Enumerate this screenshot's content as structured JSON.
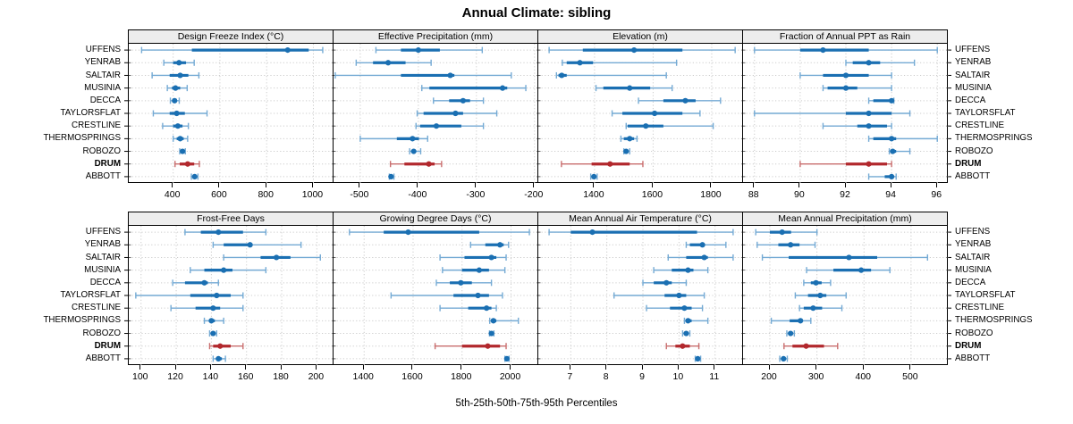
{
  "title": "Annual Climate: sibling",
  "caption": "5th-25th-50th-75th-95th Percentiles",
  "stations": [
    "UFFENS",
    "YENRAB",
    "SALTAIR",
    "MUSINIA",
    "DECCA",
    "TAYLORSFLAT",
    "CRESTLINE",
    "THERMOSPRINGS",
    "ROBOZO",
    "DRUM",
    "ABBOTT"
  ],
  "highlight_station": "DRUM",
  "colors": {
    "blue_dark": "#1a6fb2",
    "blue_light": "#74aad4",
    "red_dark": "#b2282d",
    "red_light": "#c96e6e",
    "strip_bg": "#ededed",
    "grid": "#cccccc",
    "border": "#000000"
  },
  "percentiles": [
    5,
    25,
    50,
    75,
    95
  ],
  "chart_data": [
    {
      "type": "dot-interval",
      "title": "Design Freeze Index (°C)",
      "row": 0,
      "col": 0,
      "xlim": [
        210,
        1090
      ],
      "ticks": [
        400,
        600,
        800,
        1000
      ],
      "values": [
        [
          265,
          480,
          890,
          980,
          1040
        ],
        [
          360,
          400,
          425,
          455,
          490
        ],
        [
          310,
          385,
          430,
          465,
          510
        ],
        [
          375,
          395,
          410,
          430,
          460
        ],
        [
          388,
          398,
          406,
          416,
          426
        ],
        [
          315,
          385,
          415,
          450,
          545
        ],
        [
          355,
          400,
          420,
          440,
          465
        ],
        [
          400,
          415,
          430,
          445,
          462
        ],
        [
          428,
          434,
          440,
          446,
          452
        ],
        [
          408,
          428,
          462,
          490,
          512
        ],
        [
          478,
          486,
          492,
          498,
          506
        ]
      ]
    },
    {
      "type": "dot-interval",
      "title": "Effective Precipitation (mm)",
      "row": 0,
      "col": 1,
      "xlim": [
        -546,
        -192
      ],
      "ticks": [
        -500,
        -400,
        -300,
        -200
      ],
      "values": [
        [
          -473,
          -430,
          -400,
          -363,
          -290
        ],
        [
          -507,
          -478,
          -452,
          -422,
          -378
        ],
        [
          -543,
          -430,
          -345,
          -338,
          -240
        ],
        [
          -394,
          -381,
          -255,
          -247,
          -215
        ],
        [
          -374,
          -347,
          -323,
          -311,
          -288
        ],
        [
          -402,
          -391,
          -336,
          -323,
          -265
        ],
        [
          -404,
          -397,
          -369,
          -326,
          -288
        ],
        [
          -500,
          -437,
          -410,
          -399,
          -384
        ],
        [
          -415,
          -411,
          -408,
          -404,
          -396
        ],
        [
          -448,
          -424,
          -382,
          -372,
          -360
        ],
        [
          -450,
          -449,
          -447,
          -445,
          -442
        ]
      ]
    },
    {
      "type": "dot-interval",
      "title": "Elevation (m)",
      "row": 0,
      "col": 2,
      "xlim": [
        1208,
        1910
      ],
      "ticks": [
        1400,
        1600,
        1800
      ],
      "values": [
        [
          1245,
          1360,
          1535,
          1700,
          1880
        ],
        [
          1290,
          1305,
          1350,
          1395,
          1680
        ],
        [
          1270,
          1277,
          1288,
          1305,
          1645
        ],
        [
          1405,
          1430,
          1520,
          1590,
          1665
        ],
        [
          1550,
          1635,
          1710,
          1745,
          1830
        ],
        [
          1460,
          1495,
          1605,
          1700,
          1760
        ],
        [
          1508,
          1513,
          1575,
          1635,
          1805
        ],
        [
          1490,
          1500,
          1520,
          1535,
          1545
        ],
        [
          1500,
          1504,
          1508,
          1513,
          1520
        ],
        [
          1287,
          1390,
          1453,
          1520,
          1565
        ],
        [
          1387,
          1392,
          1398,
          1404,
          1409
        ]
      ]
    },
    {
      "type": "dot-interval",
      "title": "Fraction of Annual PPT as Rain",
      "row": 0,
      "col": 3,
      "xlim": [
        87.5,
        96.5
      ],
      "ticks": [
        88,
        90,
        92,
        94,
        96
      ],
      "values": [
        [
          88,
          90,
          91,
          93,
          96
        ],
        [
          92,
          92.3,
          93,
          93.5,
          95
        ],
        [
          90,
          91,
          92,
          93,
          94
        ],
        [
          91,
          91.2,
          92,
          92.5,
          94
        ],
        [
          93,
          93.2,
          94,
          94,
          94.1
        ],
        [
          88,
          92,
          93,
          94,
          94.8
        ],
        [
          91,
          92.5,
          93,
          93.8,
          94
        ],
        [
          93,
          93.2,
          94,
          94.2,
          96
        ],
        [
          93.9,
          94,
          94.05,
          94.2,
          94.8
        ],
        [
          90,
          92,
          93,
          93.8,
          94
        ],
        [
          93,
          93.7,
          94,
          94.1,
          94.2
        ]
      ]
    },
    {
      "type": "dot-interval",
      "title": "Frost-Free Days",
      "row": 1,
      "col": 0,
      "xlim": [
        93,
        210
      ],
      "ticks": [
        100,
        120,
        140,
        160,
        180,
        200
      ],
      "values": [
        [
          125,
          134,
          144,
          158,
          171
        ],
        [
          141,
          147,
          162,
          163,
          191
        ],
        [
          147,
          168,
          177,
          185,
          202
        ],
        [
          128,
          136,
          147,
          152,
          171
        ],
        [
          118,
          125,
          136,
          138,
          144
        ],
        [
          97,
          128,
          143,
          151,
          158
        ],
        [
          117,
          131,
          141,
          145,
          158
        ],
        [
          136,
          139,
          140,
          142,
          147
        ],
        [
          139,
          140,
          141,
          142,
          143
        ],
        [
          139,
          141,
          145,
          151,
          158
        ],
        [
          141,
          143,
          144,
          146,
          148
        ]
      ]
    },
    {
      "type": "dot-interval",
      "title": "Growing Degree Days (°C)",
      "row": 1,
      "col": 1,
      "xlim": [
        1275,
        2115
      ],
      "ticks": [
        1400,
        1600,
        1800,
        2000
      ],
      "values": [
        [
          1340,
          1480,
          1580,
          1870,
          2075
        ],
        [
          1835,
          1895,
          1955,
          1970,
          1990
        ],
        [
          1710,
          1810,
          1920,
          1940,
          1980
        ],
        [
          1720,
          1800,
          1870,
          1910,
          1975
        ],
        [
          1695,
          1750,
          1795,
          1840,
          1920
        ],
        [
          1510,
          1765,
          1865,
          1910,
          1965
        ],
        [
          1710,
          1825,
          1900,
          1920,
          1940
        ],
        [
          1913,
          1920,
          1928,
          1940,
          2030
        ],
        [
          1912,
          1916,
          1920,
          1924,
          1930
        ],
        [
          1690,
          1800,
          1905,
          1955,
          1980
        ],
        [
          1975,
          1979,
          1983,
          1987,
          1992
        ]
      ]
    },
    {
      "type": "dot-interval",
      "title": "Mean Annual Air Temperature (°C)",
      "row": 1,
      "col": 2,
      "xlim": [
        6.1,
        11.8
      ],
      "ticks": [
        7,
        8,
        9,
        10,
        11
      ],
      "values": [
        [
          6.4,
          7.0,
          7.6,
          10.5,
          11.5
        ],
        [
          10.2,
          10.3,
          10.65,
          10.7,
          11.3
        ],
        [
          9.7,
          10.2,
          10.7,
          10.8,
          11.5
        ],
        [
          9.3,
          9.8,
          10.25,
          10.4,
          10.8
        ],
        [
          9.0,
          9.3,
          9.65,
          9.8,
          10.2
        ],
        [
          8.2,
          9.6,
          10.0,
          10.2,
          10.7
        ],
        [
          9.1,
          9.75,
          10.15,
          10.35,
          10.65
        ],
        [
          10.15,
          10.2,
          10.25,
          10.35,
          10.8
        ],
        [
          10.1,
          10.15,
          10.2,
          10.25,
          10.3
        ],
        [
          9.65,
          9.9,
          10.1,
          10.3,
          10.55
        ],
        [
          10.45,
          10.5,
          10.52,
          10.55,
          10.6
        ]
      ]
    },
    {
      "type": "dot-interval",
      "title": "Mean Annual Precipitation (mm)",
      "row": 1,
      "col": 3,
      "xlim": [
        143,
        580
      ],
      "ticks": [
        200,
        300,
        400,
        500
      ],
      "values": [
        [
          170,
          200,
          226,
          245,
          300
        ],
        [
          173,
          218,
          244,
          263,
          296
        ],
        [
          184,
          240,
          368,
          428,
          535
        ],
        [
          278,
          335,
          394,
          415,
          455
        ],
        [
          272,
          287,
          298,
          310,
          329
        ],
        [
          254,
          281,
          307,
          320,
          362
        ],
        [
          263,
          272,
          292,
          311,
          353
        ],
        [
          203,
          242,
          265,
          269,
          287
        ],
        [
          236,
          240,
          244,
          248,
          252
        ],
        [
          230,
          248,
          277,
          315,
          344
        ],
        [
          221,
          225,
          229,
          233,
          237
        ]
      ]
    }
  ]
}
